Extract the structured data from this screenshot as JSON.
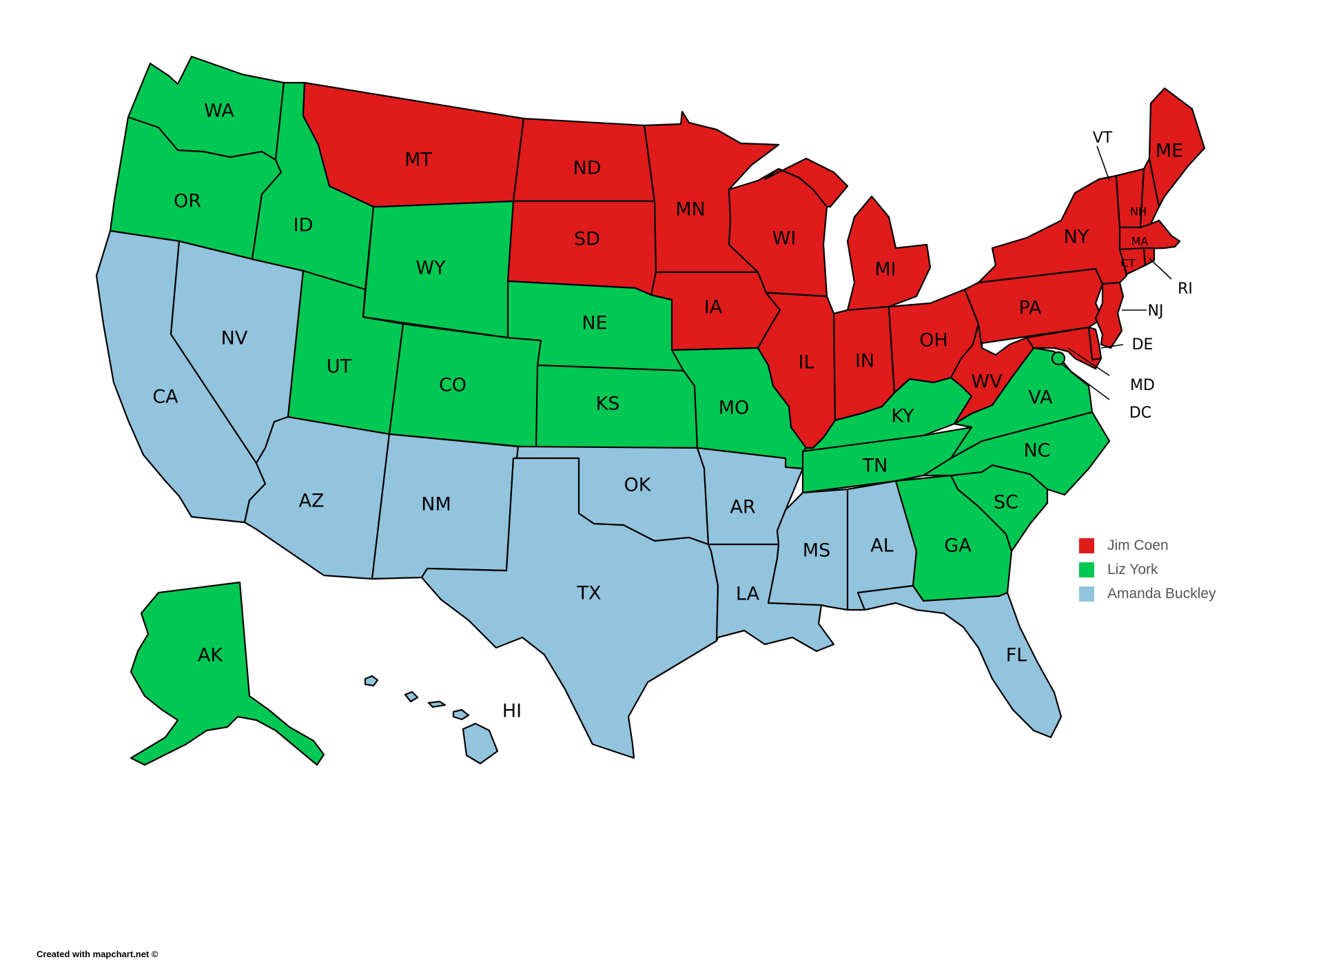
{
  "colors": {
    "red": "#e01b1b",
    "green": "#00c853",
    "blue": "#93c4de"
  },
  "legend": [
    {
      "label": "Jim Coen",
      "color": "#e01b1b"
    },
    {
      "label": "Liz York",
      "color": "#00c853"
    },
    {
      "label": "Amanda Buckley",
      "color": "#93c4de"
    }
  ],
  "states": {
    "WA": {
      "label": "WA",
      "candidate": "Liz York"
    },
    "OR": {
      "label": "OR",
      "candidate": "Liz York"
    },
    "CA": {
      "label": "CA",
      "candidate": "Amanda Buckley"
    },
    "NV": {
      "label": "NV",
      "candidate": "Amanda Buckley"
    },
    "ID": {
      "label": "ID",
      "candidate": "Liz York"
    },
    "MT": {
      "label": "MT",
      "candidate": "Jim Coen"
    },
    "WY": {
      "label": "WY",
      "candidate": "Liz York"
    },
    "UT": {
      "label": "UT",
      "candidate": "Liz York"
    },
    "AZ": {
      "label": "AZ",
      "candidate": "Amanda Buckley"
    },
    "CO": {
      "label": "CO",
      "candidate": "Liz York"
    },
    "NM": {
      "label": "NM",
      "candidate": "Amanda Buckley"
    },
    "ND": {
      "label": "ND",
      "candidate": "Jim Coen"
    },
    "SD": {
      "label": "SD",
      "candidate": "Jim Coen"
    },
    "NE": {
      "label": "NE",
      "candidate": "Liz York"
    },
    "KS": {
      "label": "KS",
      "candidate": "Liz York"
    },
    "OK": {
      "label": "OK",
      "candidate": "Amanda Buckley"
    },
    "TX": {
      "label": "TX",
      "candidate": "Amanda Buckley"
    },
    "MN": {
      "label": "MN",
      "candidate": "Jim Coen"
    },
    "IA": {
      "label": "IA",
      "candidate": "Jim Coen"
    },
    "MO": {
      "label": "MO",
      "candidate": "Liz York"
    },
    "AR": {
      "label": "AR",
      "candidate": "Amanda Buckley"
    },
    "LA": {
      "label": "LA",
      "candidate": "Amanda Buckley"
    },
    "WI": {
      "label": "WI",
      "candidate": "Jim Coen"
    },
    "IL": {
      "label": "IL",
      "candidate": "Jim Coen"
    },
    "MI": {
      "label": "MI",
      "candidate": "Jim Coen"
    },
    "IN": {
      "label": "IN",
      "candidate": "Jim Coen"
    },
    "OH": {
      "label": "OH",
      "candidate": "Jim Coen"
    },
    "KY": {
      "label": "KY",
      "candidate": "Liz York"
    },
    "TN": {
      "label": "TN",
      "candidate": "Liz York"
    },
    "MS": {
      "label": "MS",
      "candidate": "Amanda Buckley"
    },
    "AL": {
      "label": "AL",
      "candidate": "Amanda Buckley"
    },
    "GA": {
      "label": "GA",
      "candidate": "Liz York"
    },
    "FL": {
      "label": "FL",
      "candidate": "Amanda Buckley"
    },
    "SC": {
      "label": "SC",
      "candidate": "Liz York"
    },
    "NC": {
      "label": "NC",
      "candidate": "Liz York"
    },
    "VA": {
      "label": "VA",
      "candidate": "Liz York"
    },
    "WV": {
      "label": "WV",
      "candidate": "Jim Coen"
    },
    "PA": {
      "label": "PA",
      "candidate": "Jim Coen"
    },
    "NY": {
      "label": "NY",
      "candidate": "Jim Coen"
    },
    "VT": {
      "label": "VT",
      "candidate": "Jim Coen"
    },
    "NH": {
      "label": "NH",
      "candidate": "Jim Coen"
    },
    "ME": {
      "label": "ME",
      "candidate": "Jim Coen"
    },
    "MA": {
      "label": "MA",
      "candidate": "Jim Coen"
    },
    "RI": {
      "label": "RI",
      "candidate": "Jim Coen"
    },
    "CT": {
      "label": "CT",
      "candidate": "Jim Coen"
    },
    "NJ": {
      "label": "NJ",
      "candidate": "Jim Coen"
    },
    "DE": {
      "label": "DE",
      "candidate": "Jim Coen"
    },
    "MD": {
      "label": "MD",
      "candidate": "Jim Coen"
    },
    "DC": {
      "label": "DC",
      "candidate": "Liz York"
    },
    "AK": {
      "label": "AK",
      "candidate": "Liz York"
    },
    "HI": {
      "label": "HI",
      "candidate": "Amanda Buckley"
    }
  },
  "credit": "Created with mapchart.net ©"
}
